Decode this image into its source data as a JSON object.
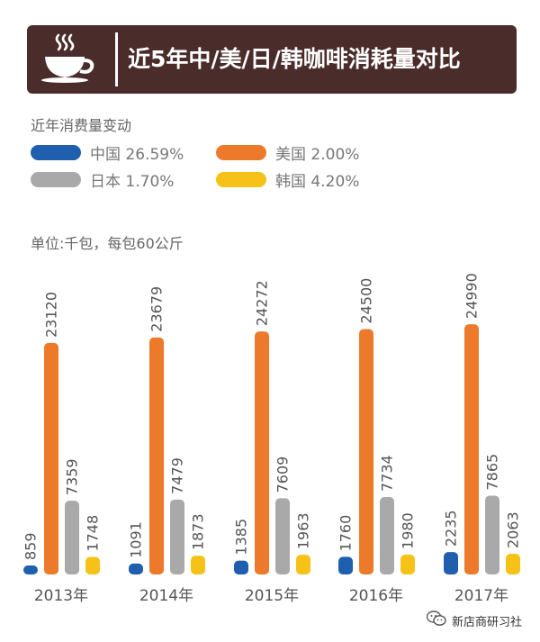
{
  "header": {
    "title": "近5年中/美/日/韩咖啡消耗量对比",
    "icon": "coffee-cup-icon"
  },
  "subtitle": "近年消费量变动",
  "unit": "单位:千包，每包60公斤",
  "legend": [
    {
      "label": "中国 26.59%",
      "color": "#1f5fae"
    },
    {
      "label": "美国 2.00%",
      "color": "#ec7a2a"
    },
    {
      "label": "日本 1.70%",
      "color": "#a9a9a9"
    },
    {
      "label": "韩国 4.20%",
      "color": "#f6c217"
    }
  ],
  "brand": {
    "label": "新店商研习社",
    "icon": "wechat-icon"
  },
  "chart_data": {
    "type": "bar",
    "categories": [
      "2013年",
      "2014年",
      "2015年",
      "2016年",
      "2017年"
    ],
    "series": [
      {
        "name": "中国",
        "color": "#1f5fae",
        "values": [
          859,
          1091,
          1385,
          1760,
          2235
        ]
      },
      {
        "name": "美国",
        "color": "#ec7a2a",
        "values": [
          23120,
          23679,
          24272,
          24500,
          24990
        ]
      },
      {
        "name": "日本",
        "color": "#a9a9a9",
        "values": [
          7359,
          7479,
          7609,
          7734,
          7865
        ]
      },
      {
        "name": "韩国",
        "color": "#f6c217",
        "values": [
          1748,
          1873,
          1963,
          1980,
          2063
        ]
      }
    ],
    "data_labels": true
  }
}
